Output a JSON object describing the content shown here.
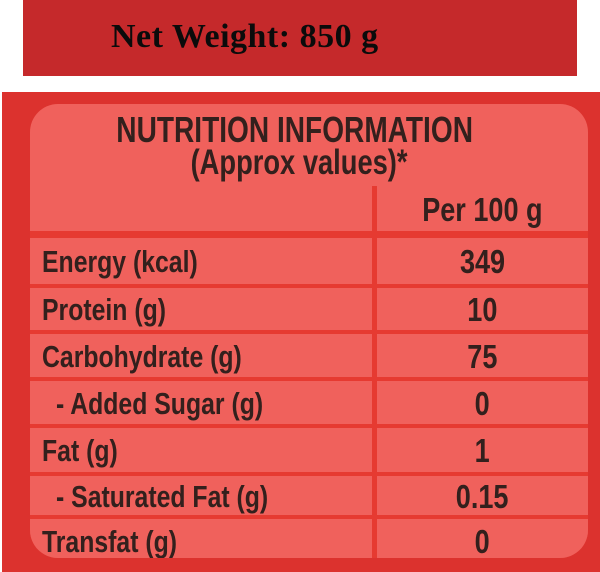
{
  "colors": {
    "page_bg": "#ffffff",
    "top_band": "#c5292b",
    "bg_red": "#dc322e",
    "label_fill": "#f0615c",
    "grid_line": "#e63a31",
    "label_text": "#33201d",
    "net_weight_text": "#0b0b0b"
  },
  "top_band": {
    "net_weight_label": "Net Weight: 850 g"
  },
  "nutrition_label": {
    "title": "NUTRITION INFORMATION",
    "subtitle": "(Approx values)*",
    "table": {
      "column_header": "Per 100 g",
      "rows": [
        {
          "name": "Energy (kcal)",
          "value": "349"
        },
        {
          "name": "Protein (g)",
          "value": "10"
        },
        {
          "name": "Carbohydrate (g)",
          "value": "75"
        },
        {
          "name": "- Added Sugar (g)",
          "value": "0"
        },
        {
          "name": "Fat (g)",
          "value": "1"
        },
        {
          "name": "- Saturated Fat (g)",
          "value": "0.15"
        },
        {
          "name": "Transfat (g)",
          "value": "0"
        }
      ]
    }
  }
}
